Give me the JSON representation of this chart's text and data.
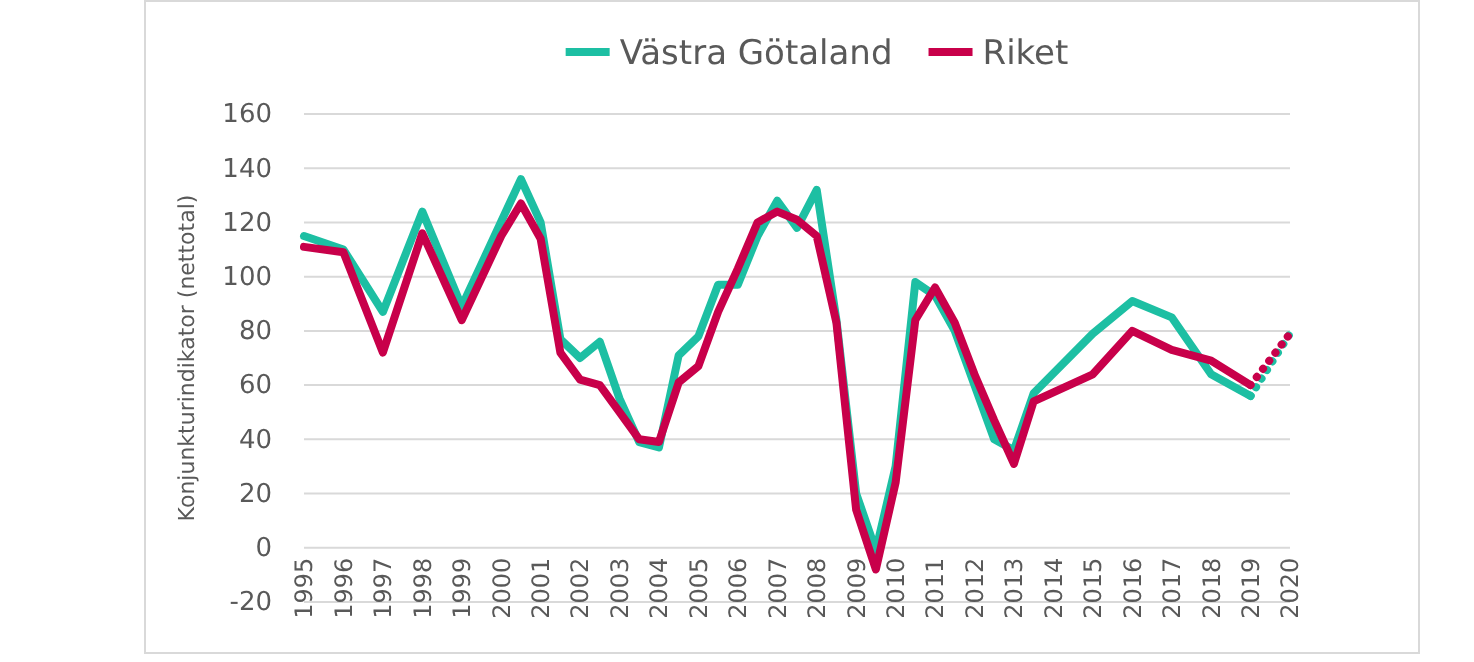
{
  "chart_data": {
    "type": "line",
    "ylabel": "Konjunkturindikator (nettotal)",
    "xlim": [
      1995,
      2020
    ],
    "xticks": [
      1995,
      1996,
      1997,
      1998,
      1999,
      2000,
      2001,
      2002,
      2003,
      2004,
      2005,
      2006,
      2007,
      2008,
      2009,
      2010,
      2011,
      2012,
      2013,
      2014,
      2015,
      2016,
      2017,
      2018,
      2019,
      2020
    ],
    "ylim": [
      -20,
      160
    ],
    "yticks": [
      -20,
      0,
      20,
      40,
      60,
      80,
      100,
      120,
      140,
      160
    ],
    "grid": "y",
    "legend": "top",
    "series": [
      {
        "name": "Västra Götaland",
        "color": "#1dbfa3",
        "x": [
          1995,
          1996,
          1997,
          1998,
          1999,
          2000.5,
          2001,
          2001.5,
          2002,
          2002.5,
          2003,
          2003.5,
          2004,
          2004.5,
          2005,
          2005.5,
          2006,
          2006.5,
          2007,
          2007.5,
          2008,
          2008.5,
          2009,
          2009.5,
          2010,
          2010.5,
          2011,
          2011.5,
          2012,
          2012.5,
          2013,
          2013.5,
          2015,
          2016,
          2017,
          2018,
          2019
        ],
        "values": [
          115,
          110,
          87,
          124,
          89,
          136,
          120,
          77,
          70,
          76,
          55,
          39,
          37,
          71,
          78,
          97,
          97,
          115,
          128,
          118,
          132,
          84,
          20,
          -1,
          30,
          98,
          93,
          80,
          60,
          40,
          36,
          57,
          79,
          91,
          85,
          64,
          56
        ]
      },
      {
        "name": "Riket",
        "color": "#c8004a",
        "x": [
          1995,
          1996,
          1997,
          1998,
          1999,
          2000,
          2000.5,
          2001,
          2001.5,
          2002,
          2002.5,
          2003,
          2003.5,
          2004,
          2004.5,
          2005,
          2005.5,
          2006,
          2006.5,
          2007,
          2007.5,
          2008,
          2008.5,
          2009,
          2009.5,
          2010,
          2010.5,
          2011,
          2011.5,
          2012,
          2012.5,
          2013,
          2013.5,
          2015,
          2016,
          2017,
          2018,
          2019
        ],
        "values": [
          111,
          109,
          72,
          116,
          84,
          115,
          127,
          114,
          72,
          62,
          60,
          50,
          40,
          39,
          61,
          67,
          87,
          103,
          120,
          124,
          121,
          115,
          83,
          14,
          -8,
          24,
          84,
          96,
          83,
          64,
          47,
          31,
          54,
          64,
          80,
          73,
          69,
          60
        ]
      },
      {
        "color": "#1dbfa3",
        "line_style": "dotted",
        "x": [
          2019,
          2020
        ],
        "values": [
          56,
          79
        ]
      },
      {
        "color": "#c8004a",
        "line_style": "dotted",
        "x": [
          2019,
          2020
        ],
        "values": [
          60,
          79
        ]
      }
    ]
  }
}
